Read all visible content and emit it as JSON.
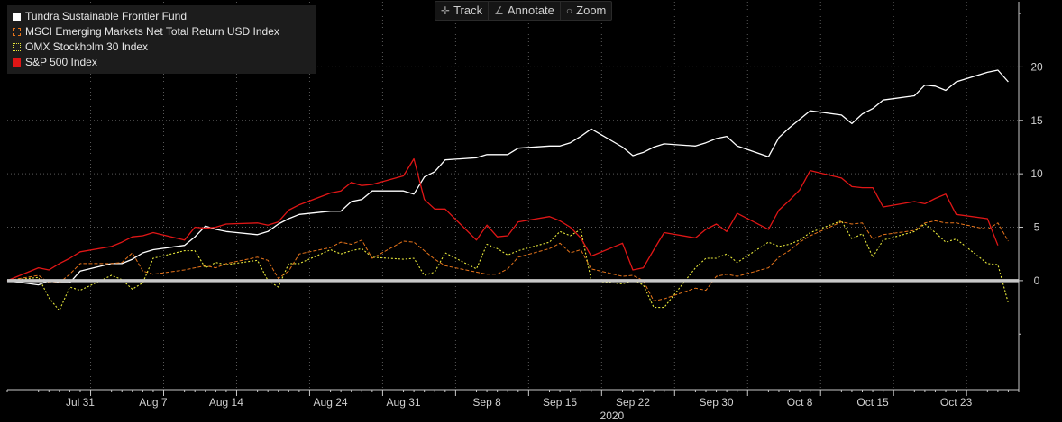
{
  "toolbar": {
    "track_label": "Track",
    "annotate_label": "Annotate",
    "zoom_label": "Zoom"
  },
  "chart_data": {
    "type": "line",
    "title": "",
    "xlabel": "2020",
    "ylabel": "",
    "ylim": [
      -10.2,
      26.1
    ],
    "grid": true,
    "legend_position": "top-left",
    "x_ticks": [
      "Jul 31",
      "Aug 7",
      "Aug 14",
      "Aug 24",
      "Aug 31",
      "Sep 8",
      "Sep 15",
      "Sep 22",
      "Sep 30",
      "Oct 8",
      "Oct 15",
      "Oct 23"
    ],
    "y_ticks": [
      0,
      5,
      10,
      15,
      20
    ],
    "zero_line": 0,
    "x_start": "2020-07-24",
    "x_end": "2020-10-29",
    "series": [
      {
        "name": "Tundra Sustainable Frontier Fund",
        "color": "#ffffff",
        "style": "solid",
        "points": [
          [
            "2020-07-24",
            0
          ],
          [
            "2020-07-27",
            -0.4
          ],
          [
            "2020-07-28",
            0
          ],
          [
            "2020-07-29",
            -0.2
          ],
          [
            "2020-07-30",
            -0.2
          ],
          [
            "2020-07-31",
            0.9
          ],
          [
            "2020-08-03",
            1.6
          ],
          [
            "2020-08-04",
            1.6
          ],
          [
            "2020-08-05",
            2
          ],
          [
            "2020-08-06",
            2.6
          ],
          [
            "2020-08-07",
            2.9
          ],
          [
            "2020-08-10",
            3.3
          ],
          [
            "2020-08-11",
            4.1
          ],
          [
            "2020-08-12",
            5.1
          ],
          [
            "2020-08-13",
            4.8
          ],
          [
            "2020-08-14",
            4.6
          ],
          [
            "2020-08-17",
            4.3
          ],
          [
            "2020-08-18",
            4.6
          ],
          [
            "2020-08-19",
            5.3
          ],
          [
            "2020-08-20",
            5.8
          ],
          [
            "2020-08-21",
            6.2
          ],
          [
            "2020-08-24",
            6.5
          ],
          [
            "2020-08-25",
            6.5
          ],
          [
            "2020-08-26",
            7.4
          ],
          [
            "2020-08-27",
            7.6
          ],
          [
            "2020-08-28",
            8.4
          ],
          [
            "2020-08-31",
            8.4
          ],
          [
            "2020-09-01",
            8.1
          ],
          [
            "2020-09-02",
            9.7
          ],
          [
            "2020-09-03",
            10.2
          ],
          [
            "2020-09-04",
            11.3
          ],
          [
            "2020-09-07",
            11.5
          ],
          [
            "2020-09-08",
            11.8
          ],
          [
            "2020-09-09",
            11.8
          ],
          [
            "2020-09-10",
            11.8
          ],
          [
            "2020-09-11",
            12.4
          ],
          [
            "2020-09-14",
            12.6
          ],
          [
            "2020-09-15",
            12.6
          ],
          [
            "2020-09-16",
            12.9
          ],
          [
            "2020-09-17",
            13.5
          ],
          [
            "2020-09-18",
            14.2
          ],
          [
            "2020-09-21",
            12.5
          ],
          [
            "2020-09-22",
            11.7
          ],
          [
            "2020-09-23",
            12
          ],
          [
            "2020-09-24",
            12.5
          ],
          [
            "2020-09-25",
            12.8
          ],
          [
            "2020-09-28",
            12.6
          ],
          [
            "2020-09-29",
            12.9
          ],
          [
            "2020-09-30",
            13.3
          ],
          [
            "2020-10-01",
            13.5
          ],
          [
            "2020-10-02",
            12.6
          ],
          [
            "2020-10-05",
            11.6
          ],
          [
            "2020-10-06",
            13.4
          ],
          [
            "2020-10-07",
            14.3
          ],
          [
            "2020-10-08",
            15.1
          ],
          [
            "2020-10-09",
            15.9
          ],
          [
            "2020-10-12",
            15.5
          ],
          [
            "2020-10-13",
            14.7
          ],
          [
            "2020-10-14",
            15.6
          ],
          [
            "2020-10-15",
            16.1
          ],
          [
            "2020-10-16",
            16.9
          ],
          [
            "2020-10-19",
            17.3
          ],
          [
            "2020-10-20",
            18.3
          ],
          [
            "2020-10-21",
            18.2
          ],
          [
            "2020-10-22",
            17.8
          ],
          [
            "2020-10-23",
            18.6
          ],
          [
            "2020-10-26",
            19.5
          ],
          [
            "2020-10-27",
            19.7
          ],
          [
            "2020-10-28",
            18.6
          ]
        ]
      },
      {
        "name": "MSCI Emerging Markets Net Total Return USD Index",
        "color": "#e5731a",
        "style": "dashed",
        "points": [
          [
            "2020-07-24",
            0
          ],
          [
            "2020-07-27",
            0.5
          ],
          [
            "2020-07-28",
            -0.2
          ],
          [
            "2020-07-29",
            -0.2
          ],
          [
            "2020-07-30",
            0.6
          ],
          [
            "2020-07-31",
            1.6
          ],
          [
            "2020-08-03",
            1.6
          ],
          [
            "2020-08-04",
            1.7
          ],
          [
            "2020-08-05",
            2.6
          ],
          [
            "2020-08-06",
            0.9
          ],
          [
            "2020-08-07",
            0.6
          ],
          [
            "2020-08-10",
            1
          ],
          [
            "2020-08-11",
            1.2
          ],
          [
            "2020-08-12",
            1.4
          ],
          [
            "2020-08-13",
            1.2
          ],
          [
            "2020-08-14",
            1.6
          ],
          [
            "2020-08-17",
            2.2
          ],
          [
            "2020-08-18",
            1.9
          ],
          [
            "2020-08-19",
            0.2
          ],
          [
            "2020-08-20",
            0.9
          ],
          [
            "2020-08-21",
            2.5
          ],
          [
            "2020-08-24",
            3.1
          ],
          [
            "2020-08-25",
            3.6
          ],
          [
            "2020-08-26",
            3.4
          ],
          [
            "2020-08-27",
            3.8
          ],
          [
            "2020-08-28",
            2.1
          ],
          [
            "2020-08-31",
            3.7
          ],
          [
            "2020-09-01",
            3.6
          ],
          [
            "2020-09-02",
            2.8
          ],
          [
            "2020-09-03",
            2
          ],
          [
            "2020-09-04",
            1.4
          ],
          [
            "2020-09-07",
            0.8
          ],
          [
            "2020-09-08",
            0.6
          ],
          [
            "2020-09-09",
            0.6
          ],
          [
            "2020-09-10",
            1.1
          ],
          [
            "2020-09-11",
            2.2
          ],
          [
            "2020-09-14",
            3
          ],
          [
            "2020-09-15",
            3.5
          ],
          [
            "2020-09-16",
            2.6
          ],
          [
            "2020-09-17",
            2.9
          ],
          [
            "2020-09-18",
            1.1
          ],
          [
            "2020-09-21",
            0.4
          ],
          [
            "2020-09-22",
            0.5
          ],
          [
            "2020-09-23",
            0
          ],
          [
            "2020-09-24",
            -1.9
          ],
          [
            "2020-09-25",
            -1.7
          ],
          [
            "2020-09-28",
            -0.7
          ],
          [
            "2020-09-29",
            -0.9
          ],
          [
            "2020-09-30",
            0.4
          ],
          [
            "2020-10-01",
            0.6
          ],
          [
            "2020-10-02",
            0.4
          ],
          [
            "2020-10-05",
            1.2
          ],
          [
            "2020-10-06",
            2.2
          ],
          [
            "2020-10-07",
            2.8
          ],
          [
            "2020-10-08",
            3.6
          ],
          [
            "2020-10-09",
            4.2
          ],
          [
            "2020-10-12",
            5.5
          ],
          [
            "2020-10-13",
            5.3
          ],
          [
            "2020-10-14",
            5.4
          ],
          [
            "2020-10-15",
            3.9
          ],
          [
            "2020-10-16",
            4.3
          ],
          [
            "2020-10-19",
            4.7
          ],
          [
            "2020-10-20",
            5.4
          ],
          [
            "2020-10-21",
            5.6
          ],
          [
            "2020-10-22",
            5.4
          ],
          [
            "2020-10-23",
            5.4
          ],
          [
            "2020-10-26",
            4.8
          ],
          [
            "2020-10-27",
            5.4
          ],
          [
            "2020-10-28",
            3.7
          ]
        ]
      },
      {
        "name": "OMX Stockholm 30 Index",
        "color": "#e8e83a",
        "style": "dotted",
        "points": [
          [
            "2020-07-24",
            0
          ],
          [
            "2020-07-27",
            0.3
          ],
          [
            "2020-07-28",
            -1.6
          ],
          [
            "2020-07-29",
            -2.8
          ],
          [
            "2020-07-30",
            -0.6
          ],
          [
            "2020-07-31",
            -0.9
          ],
          [
            "2020-08-03",
            0.5
          ],
          [
            "2020-08-04",
            0.1
          ],
          [
            "2020-08-05",
            -0.8
          ],
          [
            "2020-08-06",
            -0.2
          ],
          [
            "2020-08-07",
            2.1
          ],
          [
            "2020-08-10",
            2.8
          ],
          [
            "2020-08-11",
            2.8
          ],
          [
            "2020-08-12",
            1.2
          ],
          [
            "2020-08-13",
            1.7
          ],
          [
            "2020-08-14",
            1.5
          ],
          [
            "2020-08-17",
            1.9
          ],
          [
            "2020-08-18",
            0
          ],
          [
            "2020-08-19",
            -0.6
          ],
          [
            "2020-08-20",
            1.6
          ],
          [
            "2020-08-21",
            1.6
          ],
          [
            "2020-08-24",
            2.9
          ],
          [
            "2020-08-25",
            2.5
          ],
          [
            "2020-08-26",
            2.8
          ],
          [
            "2020-08-27",
            3
          ],
          [
            "2020-08-28",
            2.2
          ],
          [
            "2020-08-31",
            2
          ],
          [
            "2020-09-01",
            2.1
          ],
          [
            "2020-09-02",
            0.5
          ],
          [
            "2020-09-03",
            0.8
          ],
          [
            "2020-09-04",
            2.6
          ],
          [
            "2020-09-07",
            1.1
          ],
          [
            "2020-09-08",
            3.4
          ],
          [
            "2020-09-09",
            3
          ],
          [
            "2020-09-10",
            2.4
          ],
          [
            "2020-09-11",
            2.8
          ],
          [
            "2020-09-14",
            3.6
          ],
          [
            "2020-09-15",
            4.6
          ],
          [
            "2020-09-16",
            4.2
          ],
          [
            "2020-09-17",
            4.8
          ],
          [
            "2020-09-18",
            0
          ],
          [
            "2020-09-21",
            -0.3
          ],
          [
            "2020-09-22",
            0
          ],
          [
            "2020-09-23",
            -0.4
          ],
          [
            "2020-09-24",
            -2.5
          ],
          [
            "2020-09-25",
            -2.5
          ],
          [
            "2020-09-28",
            1.2
          ],
          [
            "2020-09-29",
            2.1
          ],
          [
            "2020-09-30",
            2.1
          ],
          [
            "2020-10-01",
            2.5
          ],
          [
            "2020-10-02",
            1.7
          ],
          [
            "2020-10-05",
            3.6
          ],
          [
            "2020-10-06",
            3.2
          ],
          [
            "2020-10-07",
            3.4
          ],
          [
            "2020-10-08",
            3.8
          ],
          [
            "2020-10-09",
            4.5
          ],
          [
            "2020-10-12",
            5.6
          ],
          [
            "2020-10-13",
            3.9
          ],
          [
            "2020-10-14",
            4.4
          ],
          [
            "2020-10-15",
            2.2
          ],
          [
            "2020-10-16",
            3.8
          ],
          [
            "2020-10-19",
            4.6
          ],
          [
            "2020-10-20",
            5.3
          ],
          [
            "2020-10-21",
            4.5
          ],
          [
            "2020-10-22",
            3.6
          ],
          [
            "2020-10-23",
            3.9
          ],
          [
            "2020-10-26",
            1.6
          ],
          [
            "2020-10-27",
            1.5
          ],
          [
            "2020-10-28",
            -2.1
          ]
        ]
      },
      {
        "name": "S&P 500 Index",
        "color": "#e01616",
        "style": "solid",
        "points": [
          [
            "2020-07-24",
            0
          ],
          [
            "2020-07-27",
            1.2
          ],
          [
            "2020-07-28",
            1
          ],
          [
            "2020-07-29",
            1.6
          ],
          [
            "2020-07-30",
            2.1
          ],
          [
            "2020-07-31",
            2.7
          ],
          [
            "2020-08-03",
            3.2
          ],
          [
            "2020-08-04",
            3.6
          ],
          [
            "2020-08-05",
            4.1
          ],
          [
            "2020-08-06",
            4.2
          ],
          [
            "2020-08-07",
            4.5
          ],
          [
            "2020-08-10",
            3.8
          ],
          [
            "2020-08-11",
            5
          ],
          [
            "2020-08-12",
            4.9
          ],
          [
            "2020-08-13",
            5
          ],
          [
            "2020-08-14",
            5.3
          ],
          [
            "2020-08-17",
            5.4
          ],
          [
            "2020-08-18",
            5.2
          ],
          [
            "2020-08-19",
            5.5
          ],
          [
            "2020-08-20",
            6.6
          ],
          [
            "2020-08-21",
            7.1
          ],
          [
            "2020-08-24",
            8.2
          ],
          [
            "2020-08-25",
            8.4
          ],
          [
            "2020-08-26",
            9.2
          ],
          [
            "2020-08-27",
            8.9
          ],
          [
            "2020-08-28",
            9
          ],
          [
            "2020-08-31",
            9.8
          ],
          [
            "2020-09-01",
            11.4
          ],
          [
            "2020-09-02",
            7.6
          ],
          [
            "2020-09-03",
            6.7
          ],
          [
            "2020-09-04",
            6.7
          ],
          [
            "2020-09-07",
            3.8
          ],
          [
            "2020-09-08",
            5.2
          ],
          [
            "2020-09-09",
            4.1
          ],
          [
            "2020-09-10",
            4.2
          ],
          [
            "2020-09-11",
            5.5
          ],
          [
            "2020-09-14",
            6
          ],
          [
            "2020-09-15",
            5.6
          ],
          [
            "2020-09-16",
            5
          ],
          [
            "2020-09-17",
            4
          ],
          [
            "2020-09-18",
            2.3
          ],
          [
            "2020-09-21",
            3.5
          ],
          [
            "2020-09-22",
            1
          ],
          [
            "2020-09-23",
            1.2
          ],
          [
            "2020-09-24",
            2.9
          ],
          [
            "2020-09-25",
            4.5
          ],
          [
            "2020-09-28",
            4
          ],
          [
            "2020-09-29",
            4.8
          ],
          [
            "2020-09-30",
            5.3
          ],
          [
            "2020-10-01",
            4.6
          ],
          [
            "2020-10-02",
            6.3
          ],
          [
            "2020-10-05",
            4.8
          ],
          [
            "2020-10-06",
            6.6
          ],
          [
            "2020-10-07",
            7.5
          ],
          [
            "2020-10-08",
            8.5
          ],
          [
            "2020-10-09",
            10.3
          ],
          [
            "2020-10-12",
            9.6
          ],
          [
            "2020-10-13",
            8.8
          ],
          [
            "2020-10-14",
            8.7
          ],
          [
            "2020-10-15",
            8.7
          ],
          [
            "2020-10-16",
            6.9
          ],
          [
            "2020-10-19",
            7.4
          ],
          [
            "2020-10-20",
            7.2
          ],
          [
            "2020-10-21",
            7.7
          ],
          [
            "2020-10-22",
            8.1
          ],
          [
            "2020-10-23",
            6.2
          ],
          [
            "2020-10-26",
            5.8
          ],
          [
            "2020-10-27",
            3.3
          ]
        ]
      }
    ]
  }
}
